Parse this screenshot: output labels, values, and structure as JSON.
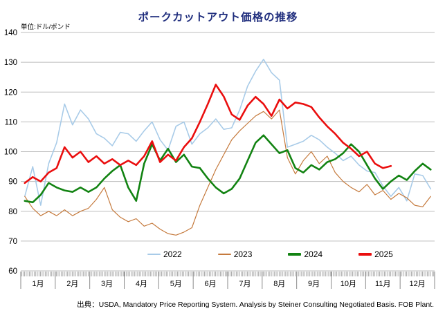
{
  "title": "ポークカットアウト価格の推移",
  "unit_label": "単位:ドル/ポンド",
  "source": "出典：USDA, Mandatory Price Reporting System. Analysis by Steiner Consulting Negotiated Basis. FOB Plant.",
  "colors": {
    "title": "#1f2d7d",
    "grid": "#bcbcbc",
    "axis": "#8a8a8a",
    "tick_strip": "#9a9a9a"
  },
  "chart_data": {
    "type": "line",
    "title": "ポークカットアウト価格の推移",
    "unit_label": "単位:ドル/ポンド",
    "xlabel": "",
    "ylabel": "ドル/ポンド",
    "ylim": [
      60,
      140
    ],
    "y_ticks": [
      140,
      130,
      120,
      110,
      100,
      90,
      80,
      70,
      60
    ],
    "x_months": [
      "1月",
      "2月",
      "3月",
      "4月",
      "5月",
      "6月",
      "7月",
      "8月",
      "9月",
      "10月",
      "11月",
      "12月"
    ],
    "x_resolution": "weekly",
    "points_per_year": 52,
    "grid": "horizontal",
    "legend_position": "bottom-center",
    "series": [
      {
        "name": "2022",
        "color": "#a8cbe8",
        "width": 1.6,
        "values": [
          85,
          95,
          82,
          96,
          103,
          116,
          109,
          114,
          111,
          106,
          104.5,
          102,
          106.5,
          106,
          103.5,
          107,
          110,
          104,
          100.5,
          108.5,
          110,
          102.5,
          106,
          108,
          111,
          107.5,
          108,
          114,
          122,
          127,
          131,
          126.5,
          124,
          101.5,
          102.5,
          103.5,
          105.5,
          104,
          101.5,
          99.5,
          97,
          98.5,
          95.5,
          93.5,
          93,
          88.5,
          85,
          88,
          83.5,
          92.5,
          92,
          87.5
        ]
      },
      {
        "name": "2023",
        "color": "#c57a3d",
        "width": 1.2,
        "values": [
          85,
          81,
          78.5,
          80,
          78.5,
          80.5,
          78.5,
          80,
          81,
          84,
          88,
          80.5,
          78,
          76.5,
          77.5,
          75,
          76,
          74,
          72.5,
          72,
          73,
          74.5,
          82,
          88,
          94,
          99,
          104,
          107,
          109.5,
          112,
          113.5,
          111,
          114,
          98,
          92.5,
          97,
          100,
          96,
          98.5,
          93,
          90,
          88,
          86.5,
          89,
          85.5,
          87,
          84,
          86,
          84.5,
          82,
          81.5,
          85
        ]
      },
      {
        "name": "2024",
        "color": "#128312",
        "width": 2.6,
        "values": [
          83.5,
          83,
          85.5,
          89.5,
          88,
          87,
          86.5,
          88,
          86.5,
          88,
          91,
          93.5,
          95.5,
          88,
          83.5,
          96,
          102.5,
          97,
          101,
          96.5,
          99,
          95,
          94.5,
          91,
          88,
          86,
          87.5,
          91,
          97,
          103,
          105.5,
          102.5,
          99.5,
          100.5,
          94.5,
          93,
          95.5,
          94,
          96.5,
          97.5,
          99.5,
          102.5,
          100,
          95.5,
          91,
          87.5,
          90,
          92,
          90.5,
          93.5,
          96,
          94
        ]
      },
      {
        "name": "2025",
        "color": "#ea0e0e",
        "width": 2.6,
        "values": [
          89.5,
          91.5,
          90,
          93,
          94.5,
          101.5,
          98,
          100,
          96.5,
          98.5,
          96,
          97.5,
          95.5,
          97,
          95.5,
          98.5,
          103.5,
          96.5,
          99,
          97,
          101.5,
          104.5,
          110,
          116,
          122.5,
          118.5,
          112.5,
          110.7,
          115.5,
          118.4,
          116,
          112,
          117.5,
          114.5,
          116.5,
          116,
          115,
          111.5,
          108.5,
          106,
          103,
          101,
          98.5,
          100,
          96,
          94.5,
          95.2
        ]
      }
    ]
  }
}
